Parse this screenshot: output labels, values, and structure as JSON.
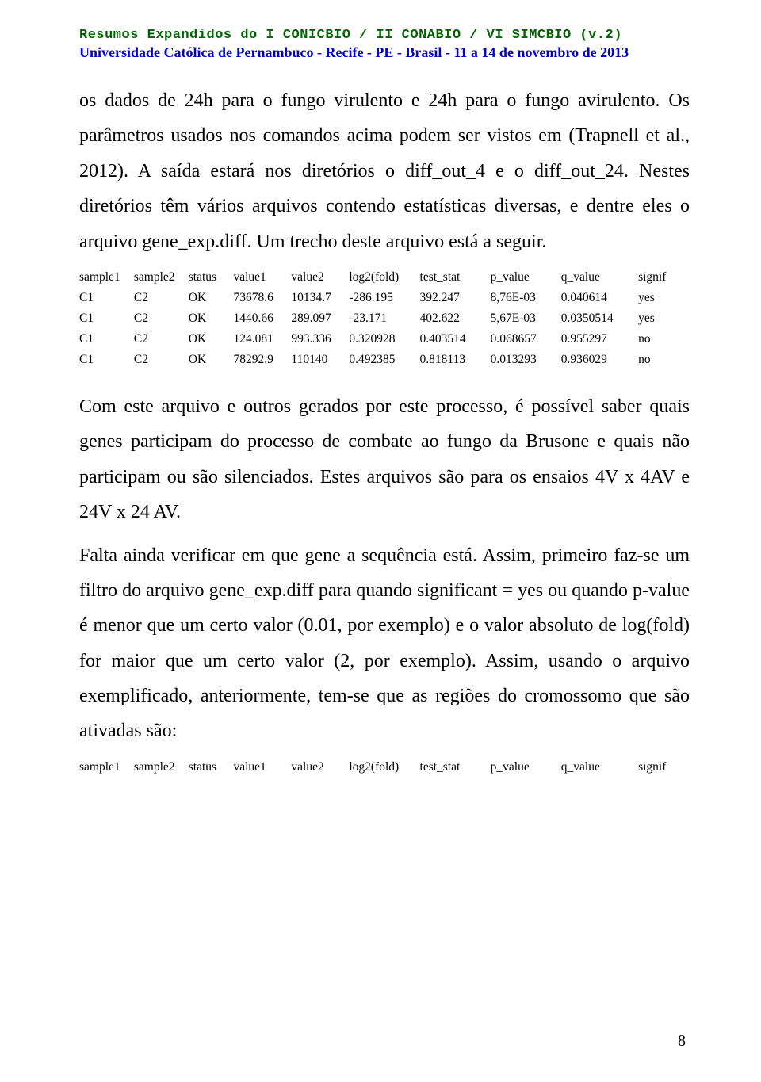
{
  "header": {
    "title_main": "Resumos Expandidos do I CONICBIO / II CONABIO / VI SIMCBIO",
    "title_ver": " (v.2)",
    "subtitle": "Universidade Católica de Pernambuco - Recife - PE - Brasil - 11 a 14 de novembro de 2013"
  },
  "para1": "os dados de 24h para o fungo virulento e 24h para o fungo avirulento. Os parâmetros usados nos comandos acima podem ser vistos em (Trapnell et al., 2012). A saída estará nos diretórios o diff_out_4 e o diff_out_24. Nestes diretórios têm vários arquivos contendo estatísticas diversas, e dentre eles o arquivo gene_exp.diff.  Um trecho deste arquivo está a seguir.",
  "table1": {
    "columns": [
      "sample1",
      "sample2",
      "status",
      "value1",
      "value2",
      "log2(fold)",
      "test_stat",
      "p_value",
      "q_value",
      "signif"
    ],
    "rows": [
      [
        "C1",
        "C2",
        "OK",
        "73678.6",
        "10134.7",
        "-286.195",
        "392.247",
        "8,76E-03",
        "0.040614",
        "yes"
      ],
      [
        "C1",
        "C2",
        "OK",
        "1440.66",
        "289.097",
        "-23.171",
        "402.622",
        "5,67E-03",
        "0.0350514",
        "yes"
      ],
      [
        "C1",
        "C2",
        "OK",
        "124.081",
        "993.336",
        "0.320928",
        "0.403514",
        "0.068657",
        "0.955297",
        "no"
      ],
      [
        "C1",
        "C2",
        "OK",
        "78292.9",
        "110140",
        "0.492385",
        "0.818113",
        "0.013293",
        "0.936029",
        "no"
      ]
    ]
  },
  "para2": "Com este arquivo e outros gerados por este processo, é possível saber quais genes participam do processo de combate ao fungo da Brusone e quais não participam ou são silenciados. Estes arquivos são para os ensaios 4V x 4AV e 24V x 24 AV.",
  "para3": "Falta ainda verificar em que gene a sequência está. Assim, primeiro faz-se um filtro do arquivo gene_exp.diff para quando significant = yes ou quando p-value é menor que um certo valor (0.01, por exemplo) e o valor absoluto de log(fold) for maior que um certo valor (2, por exemplo). Assim, usando o arquivo exemplificado, anteriormente, tem-se que as regiões do cromossomo que são ativadas são:",
  "table2": {
    "columns": [
      "sample1",
      "sample2",
      "status",
      "value1",
      "value2",
      "log2(fold)",
      "test_stat",
      "p_value",
      "q_value",
      "signif"
    ]
  },
  "page_number": "8"
}
